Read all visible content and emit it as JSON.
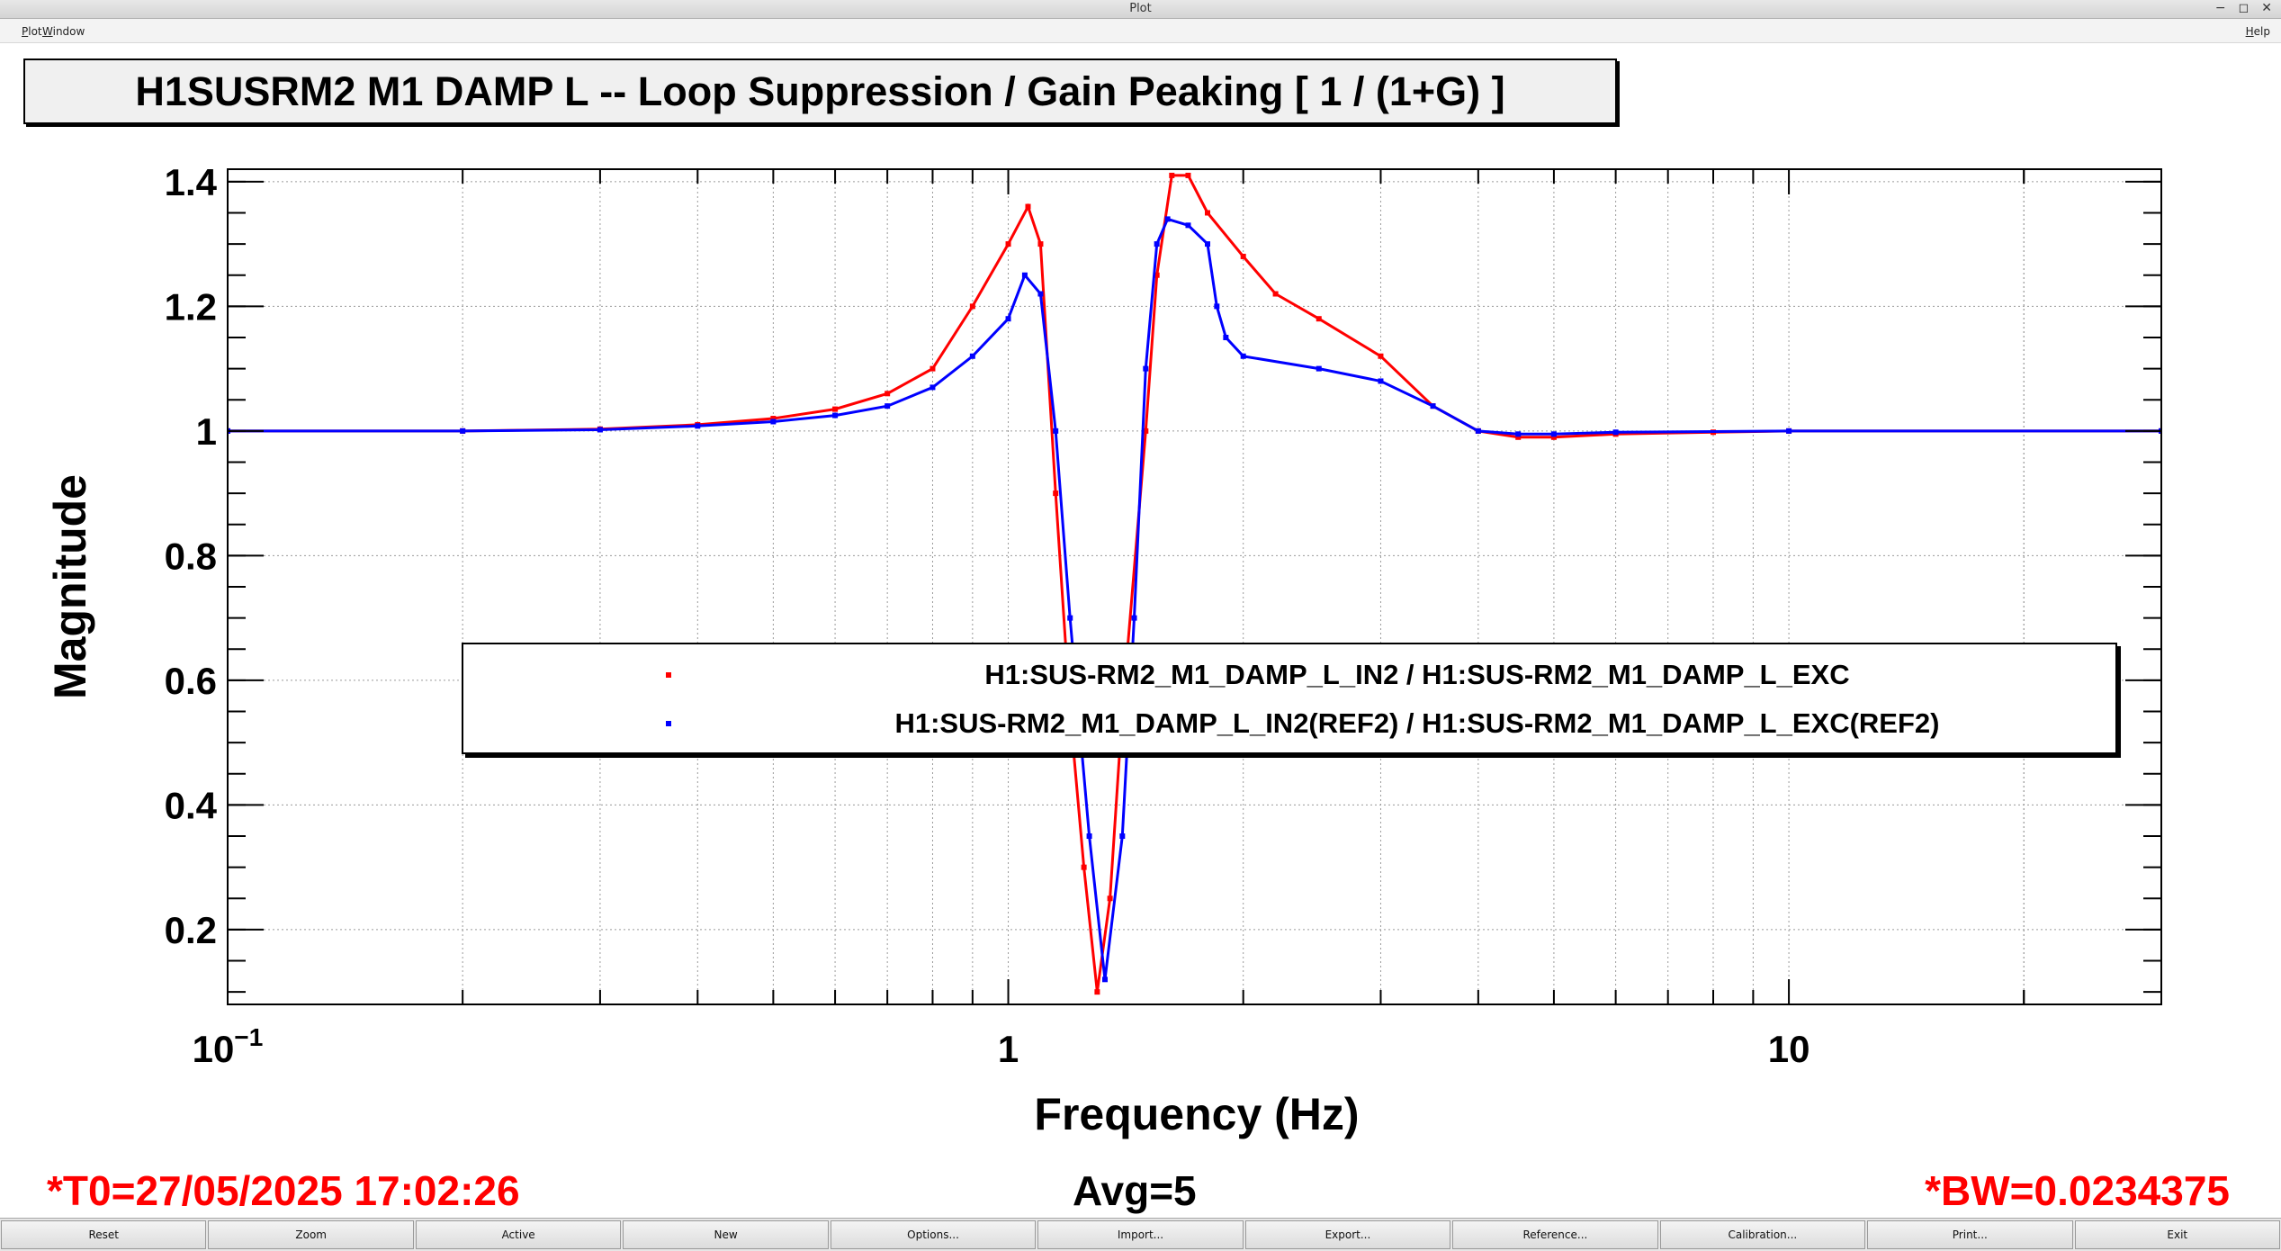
{
  "window": {
    "title": "Plot",
    "help_label": "Help"
  },
  "menu": {
    "items": [
      "Plot",
      "Window"
    ]
  },
  "plot": {
    "title": "H1SUSRM2 M1 DAMP L -- Loop Suppression / Gain Peaking [ 1 / (1+G) ]",
    "footer_t0": "*T0=27/05/2025 17:02:26",
    "footer_avg": "Avg=5",
    "footer_bw": "*BW=0.0234375",
    "colors": {
      "series1": "#ff0000",
      "series2": "#0000ff",
      "footer": "#ff0000"
    }
  },
  "chart_data": {
    "type": "line",
    "title": "H1SUSRM2 M1 DAMP L -- Loop Suppression / Gain Peaking [ 1 / (1+G) ]",
    "xlabel": "Frequency (Hz)",
    "ylabel": "Magnitude",
    "x_scale": "log",
    "xlim": [
      0.1,
      30
    ],
    "ylim": [
      0.08,
      1.42
    ],
    "grid": true,
    "legend_position": "center-right",
    "x_ticks": [
      {
        "base": "10",
        "exp": "−1",
        "value": 0.1
      },
      {
        "base": "1",
        "exp": "",
        "value": 1
      },
      {
        "base": "10",
        "exp": "",
        "value": 10
      }
    ],
    "y_ticks": [
      "0.2",
      "0.4",
      "0.6",
      "0.8",
      "1",
      "1.2",
      "1.4"
    ],
    "series": [
      {
        "name": "H1:SUS-RM2_M1_DAMP_L_IN2 / H1:SUS-RM2_M1_DAMP_L_EXC",
        "color": "#ff0000",
        "points": [
          [
            0.1,
            1.0
          ],
          [
            0.2,
            1.0
          ],
          [
            0.3,
            1.003
          ],
          [
            0.4,
            1.01
          ],
          [
            0.5,
            1.02
          ],
          [
            0.6,
            1.035
          ],
          [
            0.7,
            1.06
          ],
          [
            0.8,
            1.1
          ],
          [
            0.9,
            1.2
          ],
          [
            1.0,
            1.3
          ],
          [
            1.06,
            1.36
          ],
          [
            1.1,
            1.3
          ],
          [
            1.15,
            0.9
          ],
          [
            1.2,
            0.55
          ],
          [
            1.25,
            0.3
          ],
          [
            1.3,
            0.1
          ],
          [
            1.35,
            0.25
          ],
          [
            1.4,
            0.55
          ],
          [
            1.5,
            1.0
          ],
          [
            1.55,
            1.25
          ],
          [
            1.62,
            1.41
          ],
          [
            1.7,
            1.41
          ],
          [
            1.8,
            1.35
          ],
          [
            2.0,
            1.28
          ],
          [
            2.2,
            1.22
          ],
          [
            2.5,
            1.18
          ],
          [
            3.0,
            1.12
          ],
          [
            3.5,
            1.04
          ],
          [
            4.0,
            1.0
          ],
          [
            4.5,
            0.99
          ],
          [
            5.0,
            0.99
          ],
          [
            6.0,
            0.995
          ],
          [
            8.0,
            0.998
          ],
          [
            10.0,
            1.0
          ],
          [
            30.0,
            1.0
          ]
        ]
      },
      {
        "name": "H1:SUS-RM2_M1_DAMP_L_IN2(REF2) / H1:SUS-RM2_M1_DAMP_L_EXC(REF2)",
        "color": "#0000ff",
        "points": [
          [
            0.1,
            1.0
          ],
          [
            0.2,
            1.0
          ],
          [
            0.3,
            1.002
          ],
          [
            0.4,
            1.008
          ],
          [
            0.5,
            1.015
          ],
          [
            0.6,
            1.025
          ],
          [
            0.7,
            1.04
          ],
          [
            0.8,
            1.07
          ],
          [
            0.9,
            1.12
          ],
          [
            1.0,
            1.18
          ],
          [
            1.05,
            1.25
          ],
          [
            1.1,
            1.22
          ],
          [
            1.15,
            1.0
          ],
          [
            1.2,
            0.7
          ],
          [
            1.27,
            0.35
          ],
          [
            1.33,
            0.12
          ],
          [
            1.4,
            0.35
          ],
          [
            1.45,
            0.7
          ],
          [
            1.5,
            1.1
          ],
          [
            1.55,
            1.3
          ],
          [
            1.6,
            1.34
          ],
          [
            1.7,
            1.33
          ],
          [
            1.8,
            1.3
          ],
          [
            1.85,
            1.2
          ],
          [
            1.9,
            1.15
          ],
          [
            2.0,
            1.12
          ],
          [
            2.5,
            1.1
          ],
          [
            3.0,
            1.08
          ],
          [
            3.5,
            1.04
          ],
          [
            4.0,
            1.0
          ],
          [
            4.5,
            0.995
          ],
          [
            5.0,
            0.995
          ],
          [
            6.0,
            0.998
          ],
          [
            10.0,
            1.0
          ],
          [
            30.0,
            1.0
          ]
        ]
      }
    ]
  },
  "buttons": [
    "Reset",
    "Zoom",
    "Active",
    "New",
    "Options...",
    "Import...",
    "Export...",
    "Reference...",
    "Calibration...",
    "Print...",
    "Exit"
  ]
}
